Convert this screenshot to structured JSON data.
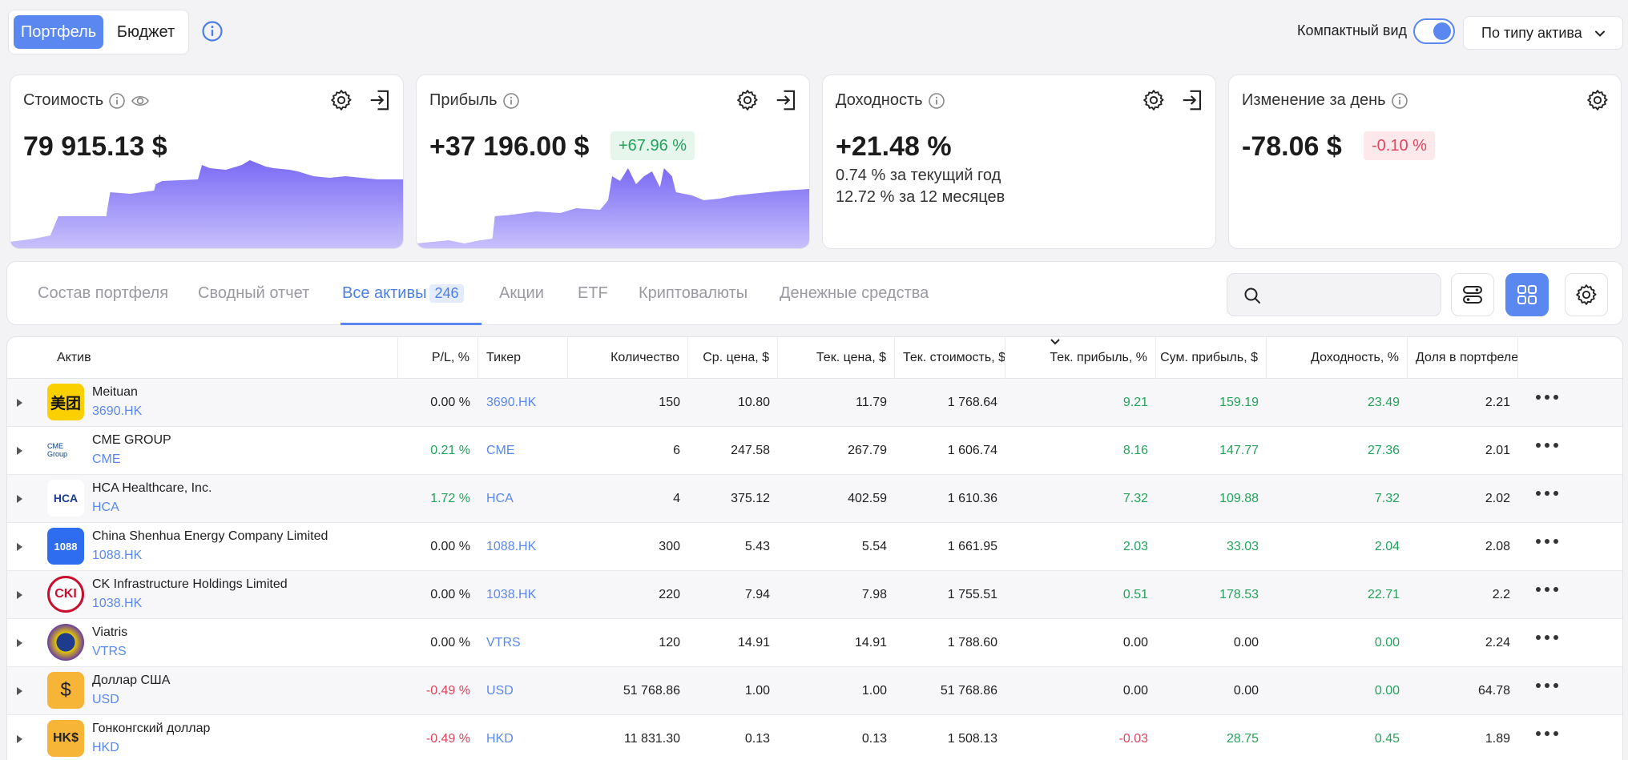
{
  "top": {
    "seg_portfolio": "Портфель",
    "seg_budget": "Бюджет",
    "compact_label": "Компактный вид",
    "group_select": "По типу актива"
  },
  "cards": {
    "value": {
      "title": "Стоимость",
      "amount": "79 915.13 $"
    },
    "profit": {
      "title": "Прибыль",
      "amount": "+37 196.00 $",
      "badge": "+67.96 %"
    },
    "yield": {
      "title": "Доходность",
      "amount": "+21.48 %",
      "line1": "0.74 % за текущий год",
      "line2": "12.72 % за 12 месяцев"
    },
    "day": {
      "title": "Изменение за день",
      "amount": "-78.06 $",
      "badge": "-0.10 %"
    }
  },
  "tabs": {
    "composition": "Состав портфеля",
    "summary": "Сводный отчет",
    "all": "Все активы",
    "all_count": "246",
    "stocks": "Акции",
    "etf": "ETF",
    "crypto": "Криптовалюты",
    "cash": "Денежные средства"
  },
  "search": {
    "placeholder": ""
  },
  "table": {
    "headers": {
      "asset": "Актив",
      "pl": "P/L, %",
      "ticker": "Тикер",
      "qty": "Количество",
      "avg": "Ср. цена, $",
      "cur": "Тек. цена, $",
      "val": "Тек. стоимость, $",
      "curp": "Тек. прибыль, %",
      "sump": "Сум. прибыль, $",
      "yld": "Доходность, %",
      "share": "Доля в портфеле"
    },
    "rows": [
      {
        "name": "Meituan",
        "ticker": "3690.HK",
        "pl": "0.00 %",
        "qty": "150",
        "avg": "10.80",
        "cur": "11.79",
        "val": "1 768.64",
        "curp": "9.21",
        "sump": "159.19",
        "yld": "23.49",
        "share": "2.21",
        "logo_text": "美团"
      },
      {
        "name": "CME GROUP",
        "ticker": "CME",
        "pl": "0.21 %",
        "qty": "6",
        "avg": "247.58",
        "cur": "267.79",
        "val": "1 606.74",
        "curp": "8.16",
        "sump": "147.77",
        "yld": "27.36",
        "share": "2.01",
        "logo_text": "CME Group"
      },
      {
        "name": "HCA Healthcare, Inc.",
        "ticker": "HCA",
        "pl": "1.72 %",
        "qty": "4",
        "avg": "375.12",
        "cur": "402.59",
        "val": "1 610.36",
        "curp": "7.32",
        "sump": "109.88",
        "yld": "7.32",
        "share": "2.02",
        "logo_text": "HCA"
      },
      {
        "name": "China Shenhua Energy Company Limited",
        "ticker": "1088.HK",
        "pl": "0.00 %",
        "qty": "300",
        "avg": "5.43",
        "cur": "5.54",
        "val": "1 661.95",
        "curp": "2.03",
        "sump": "33.03",
        "yld": "2.04",
        "share": "2.08",
        "logo_text": "1088"
      },
      {
        "name": "CK Infrastructure Holdings Limited",
        "ticker": "1038.HK",
        "pl": "0.00 %",
        "qty": "220",
        "avg": "7.94",
        "cur": "7.98",
        "val": "1 755.51",
        "curp": "0.51",
        "sump": "178.53",
        "yld": "22.71",
        "share": "2.2",
        "logo_text": "CKI"
      },
      {
        "name": "Viatris",
        "ticker": "VTRS",
        "pl": "0.00 %",
        "qty": "120",
        "avg": "14.91",
        "cur": "14.91",
        "val": "1 788.60",
        "curp": "0.00",
        "sump": "0.00",
        "yld": "0.00",
        "share": "2.24",
        "logo_text": ""
      },
      {
        "name": "Доллар США",
        "ticker": "USD",
        "pl": "-0.49 %",
        "qty": "51 768.86",
        "avg": "1.00",
        "cur": "1.00",
        "val": "51 768.86",
        "curp": "0.00",
        "sump": "0.00",
        "yld": "0.00",
        "share": "64.78",
        "logo_text": "$"
      },
      {
        "name": "Гонконгский доллар",
        "ticker": "HKD",
        "pl": "-0.49 %",
        "qty": "11 831.30",
        "avg": "0.13",
        "cur": "0.13",
        "val": "1 508.13",
        "curp": "-0.03",
        "sump": "28.75",
        "yld": "0.45",
        "share": "1.89",
        "logo_text": "HK$"
      }
    ]
  },
  "colors": {
    "accent": "#5a88f0",
    "positive": "#22a35b",
    "negative": "#e0445e",
    "spark": "#7b6cf6"
  }
}
